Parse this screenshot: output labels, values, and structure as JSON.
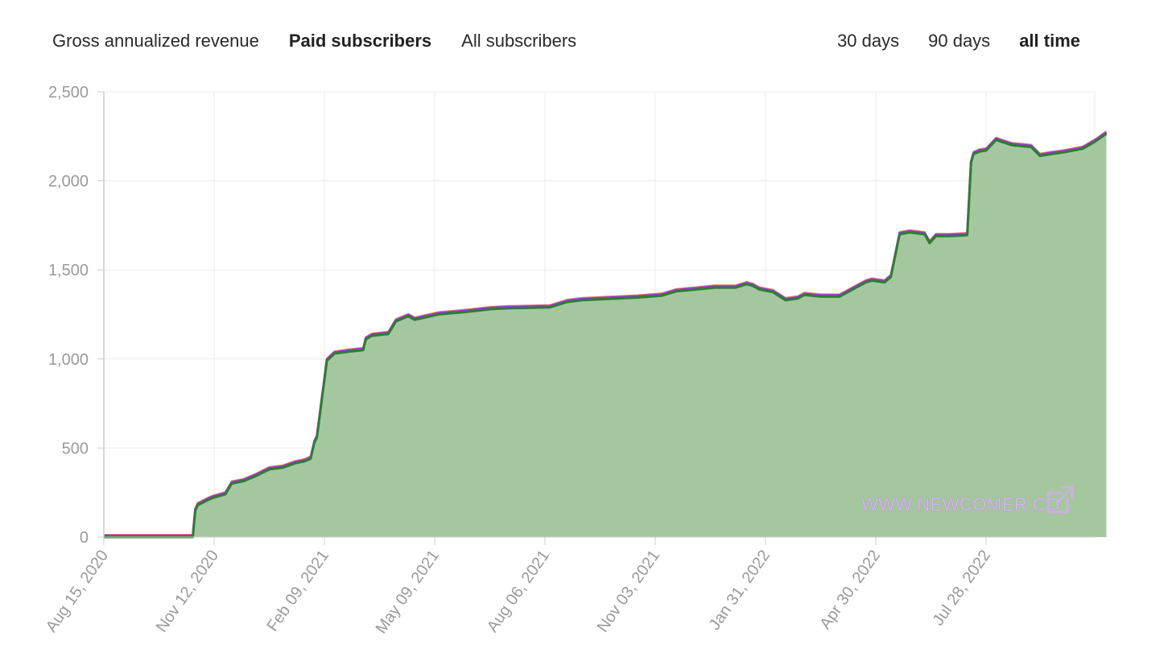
{
  "tabs": {
    "metrics": [
      {
        "label": "Gross annualized revenue",
        "active": false
      },
      {
        "label": "Paid subscribers",
        "active": true
      },
      {
        "label": "All subscribers",
        "active": false
      }
    ],
    "ranges": [
      {
        "label": "30 days",
        "active": false
      },
      {
        "label": "90 days",
        "active": false
      },
      {
        "label": "all time",
        "active": true
      }
    ]
  },
  "watermark": {
    "text": "WWW.NEWCOMER.CO",
    "icon": "external-link-icon",
    "color": "#c9b3df"
  },
  "colors": {
    "area_fill": "#a5c79f",
    "main_line": "#2e7d32",
    "secondary_line_purple": "#8a3fc7",
    "secondary_line_red": "#e05a5a",
    "grid": "#ececec",
    "axis": "#cccccc",
    "tick_text": "#9a9a9a"
  },
  "chart_data": {
    "type": "area",
    "title": "",
    "xlabel": "",
    "ylabel": "",
    "ylim": [
      0,
      2500
    ],
    "xlim": [
      "2020-08-15",
      "2022-10-24"
    ],
    "yticks": [
      0,
      500,
      1000,
      1500,
      2000,
      2500
    ],
    "ytick_labels": [
      "0",
      "500",
      "1,000",
      "1,500",
      "2,000",
      "2,500"
    ],
    "xtick_labels": [
      "Aug 15, 2020",
      "Nov 12, 2020",
      "Feb 09, 2021",
      "May 09, 2021",
      "Aug 06, 2021",
      "Nov 03, 2021",
      "Jan 31, 2022",
      "Apr 30, 2022",
      "Jul 28, 2022"
    ],
    "grid": true,
    "legend": "none",
    "series": [
      {
        "x": [
          "2020-08-15",
          "2020-10-25",
          "2020-10-27",
          "2020-10-29",
          "2020-11-01",
          "2020-11-05",
          "2020-11-10",
          "2020-11-20",
          "2020-11-25",
          "2020-12-05",
          "2020-12-15",
          "2020-12-25",
          "2021-01-05",
          "2021-01-15",
          "2021-01-22",
          "2021-01-27",
          "2021-01-30",
          "2021-02-01",
          "2021-02-09",
          "2021-02-15",
          "2021-02-25",
          "2021-03-10",
          "2021-03-12",
          "2021-03-17",
          "2021-03-30",
          "2021-04-05",
          "2021-04-15",
          "2021-04-20",
          "2021-05-09",
          "2021-06-01",
          "2021-06-20",
          "2021-07-05",
          "2021-08-06",
          "2021-08-20",
          "2021-09-01",
          "2021-09-15",
          "2021-10-01",
          "2021-10-15",
          "2021-11-03",
          "2021-11-15",
          "2021-12-01",
          "2021-12-15",
          "2022-01-01",
          "2022-01-10",
          "2022-01-15",
          "2022-01-20",
          "2022-01-31",
          "2022-02-10",
          "2022-02-20",
          "2022-02-25",
          "2022-03-10",
          "2022-03-25",
          "2022-04-15",
          "2022-04-20",
          "2022-04-30",
          "2022-05-05",
          "2022-05-12",
          "2022-05-20",
          "2022-06-01",
          "2022-06-05",
          "2022-06-10",
          "2022-06-20",
          "2022-07-05",
          "2022-07-08",
          "2022-07-10",
          "2022-07-15",
          "2022-07-20",
          "2022-07-28",
          "2022-08-01",
          "2022-08-10",
          "2022-08-25",
          "2022-09-01",
          "2022-09-10",
          "2022-09-20",
          "2022-10-05",
          "2022-10-15",
          "2022-10-20",
          "2022-10-24"
        ],
        "y": [
          0,
          0,
          150,
          180,
          190,
          205,
          220,
          240,
          300,
          315,
          345,
          380,
          390,
          415,
          425,
          440,
          530,
          560,
          990,
          1030,
          1040,
          1050,
          1110,
          1130,
          1140,
          1210,
          1240,
          1220,
          1250,
          1265,
          1280,
          1285,
          1290,
          1320,
          1330,
          1335,
          1340,
          1345,
          1355,
          1380,
          1390,
          1400,
          1400,
          1420,
          1410,
          1390,
          1375,
          1330,
          1340,
          1360,
          1350,
          1350,
          1430,
          1440,
          1430,
          1460,
          1700,
          1710,
          1700,
          1650,
          1690,
          1690,
          1695,
          2100,
          2150,
          2165,
          2170,
          2230,
          2220,
          2200,
          2190,
          2140,
          2150,
          2160,
          2180,
          2220,
          2245,
          2265
        ]
      }
    ]
  }
}
